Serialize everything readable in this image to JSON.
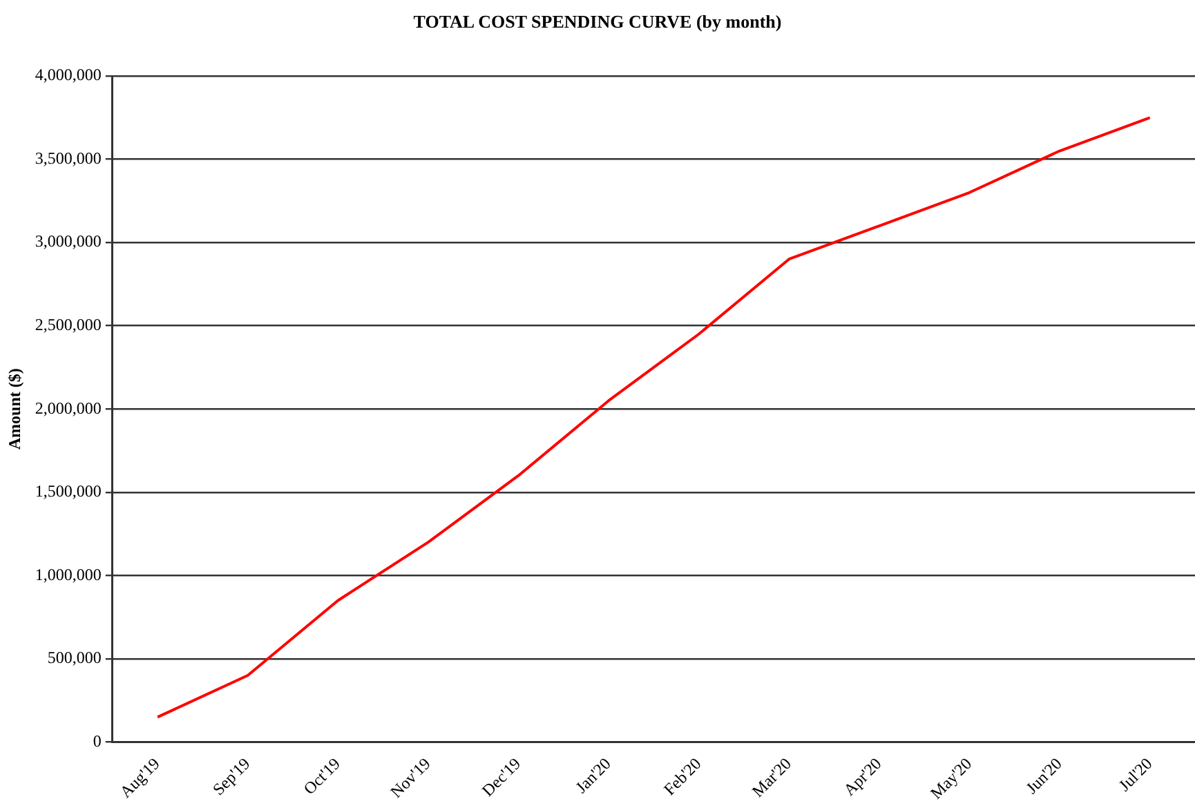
{
  "chart_data": {
    "type": "line",
    "title": "TOTAL COST SPENDING CURVE (by month)",
    "ylabel": "Amount ($)",
    "categories": [
      "Aug'19",
      "Sep'19",
      "Oct'19",
      "Nov'19",
      "Dec'19",
      "Jan'20",
      "Feb'20",
      "Mar'20",
      "Apr'20",
      "May'20",
      "Jun'20",
      "Jul'20"
    ],
    "series": [
      {
        "color": "#ff0000",
        "values": [
          150000,
          400000,
          850000,
          1200000,
          1600000,
          2050000,
          2450000,
          2900000,
          3100000,
          3300000,
          3550000,
          3750000
        ]
      }
    ],
    "ylim": [
      0,
      4000000
    ],
    "yticks": [
      {
        "value": 0,
        "label": "0"
      },
      {
        "value": 500000,
        "label": "500,000"
      },
      {
        "value": 1000000,
        "label": "1,000,000"
      },
      {
        "value": 1500000,
        "label": "1,500,000"
      },
      {
        "value": 2000000,
        "label": "2,000,000"
      },
      {
        "value": 2500000,
        "label": "2,500,000"
      },
      {
        "value": 3000000,
        "label": "3,000,000"
      },
      {
        "value": 3500000,
        "label": "3,500,000"
      },
      {
        "value": 4000000,
        "label": "4,000,000"
      }
    ],
    "grid": "y",
    "legend": false,
    "marker": "none",
    "line_style": "solid"
  }
}
